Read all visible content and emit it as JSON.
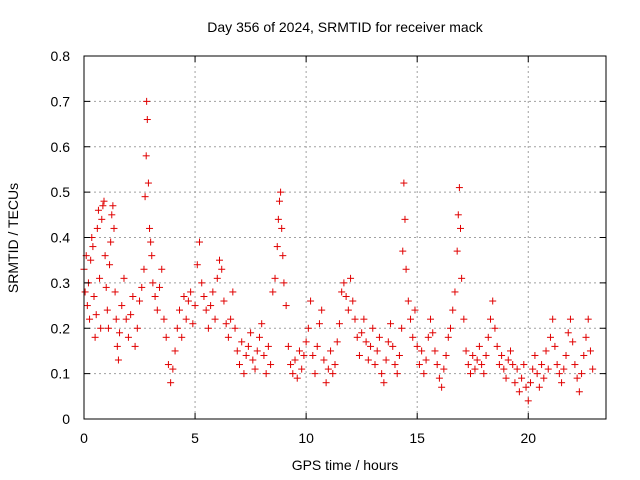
{
  "chart_data": {
    "type": "scatter",
    "title": "Day 356 of 2024, SRMTID for receiver mack",
    "xlabel": "GPS time / hours",
    "ylabel": "SRMTID / TECUs",
    "xlim": [
      0,
      23.5
    ],
    "ylim": [
      0,
      0.8
    ],
    "xticks": [
      0,
      5,
      10,
      15,
      20
    ],
    "xtick_labels": [
      "0",
      "5",
      "10",
      "15",
      "20"
    ],
    "yticks": [
      0,
      0.1,
      0.2,
      0.3,
      0.4,
      0.5,
      0.6,
      0.7,
      0.8
    ],
    "ytick_labels": [
      "0",
      "0.1",
      "0.2",
      "0.3",
      "0.4",
      "0.5",
      "0.6",
      "0.7",
      "0.8"
    ],
    "grid": true,
    "marker": "+",
    "color": "#e00000",
    "series": [
      {
        "name": "SRMTID",
        "points": [
          [
            0.0,
            0.33
          ],
          [
            0.05,
            0.28
          ],
          [
            0.1,
            0.36
          ],
          [
            0.15,
            0.25
          ],
          [
            0.2,
            0.3
          ],
          [
            0.25,
            0.22
          ],
          [
            0.3,
            0.35
          ],
          [
            0.35,
            0.4
          ],
          [
            0.4,
            0.38
          ],
          [
            0.45,
            0.27
          ],
          [
            0.5,
            0.18
          ],
          [
            0.55,
            0.23
          ],
          [
            0.6,
            0.42
          ],
          [
            0.65,
            0.46
          ],
          [
            0.7,
            0.31
          ],
          [
            0.75,
            0.2
          ],
          [
            0.8,
            0.44
          ],
          [
            0.85,
            0.47
          ],
          [
            0.9,
            0.48
          ],
          [
            0.95,
            0.36
          ],
          [
            1.0,
            0.29
          ],
          [
            1.05,
            0.24
          ],
          [
            1.1,
            0.2
          ],
          [
            1.15,
            0.34
          ],
          [
            1.2,
            0.39
          ],
          [
            1.25,
            0.45
          ],
          [
            1.3,
            0.47
          ],
          [
            1.35,
            0.42
          ],
          [
            1.4,
            0.28
          ],
          [
            1.45,
            0.22
          ],
          [
            1.5,
            0.16
          ],
          [
            1.55,
            0.13
          ],
          [
            1.6,
            0.19
          ],
          [
            1.7,
            0.25
          ],
          [
            1.8,
            0.31
          ],
          [
            1.9,
            0.22
          ],
          [
            2.0,
            0.18
          ],
          [
            2.1,
            0.23
          ],
          [
            2.2,
            0.27
          ],
          [
            2.3,
            0.16
          ],
          [
            2.4,
            0.2
          ],
          [
            2.5,
            0.26
          ],
          [
            2.6,
            0.29
          ],
          [
            2.7,
            0.33
          ],
          [
            2.75,
            0.49
          ],
          [
            2.8,
            0.58
          ],
          [
            2.82,
            0.7
          ],
          [
            2.85,
            0.66
          ],
          [
            2.9,
            0.52
          ],
          [
            2.95,
            0.42
          ],
          [
            3.0,
            0.39
          ],
          [
            3.05,
            0.36
          ],
          [
            3.1,
            0.3
          ],
          [
            3.2,
            0.27
          ],
          [
            3.3,
            0.24
          ],
          [
            3.4,
            0.29
          ],
          [
            3.5,
            0.33
          ],
          [
            3.6,
            0.22
          ],
          [
            3.7,
            0.18
          ],
          [
            3.8,
            0.12
          ],
          [
            3.9,
            0.08
          ],
          [
            4.0,
            0.11
          ],
          [
            4.1,
            0.15
          ],
          [
            4.2,
            0.2
          ],
          [
            4.3,
            0.24
          ],
          [
            4.4,
            0.18
          ],
          [
            4.5,
            0.27
          ],
          [
            4.6,
            0.22
          ],
          [
            4.7,
            0.26
          ],
          [
            4.8,
            0.28
          ],
          [
            4.9,
            0.21
          ],
          [
            5.0,
            0.25
          ],
          [
            5.1,
            0.34
          ],
          [
            5.2,
            0.39
          ],
          [
            5.3,
            0.3
          ],
          [
            5.4,
            0.27
          ],
          [
            5.5,
            0.24
          ],
          [
            5.6,
            0.2
          ],
          [
            5.7,
            0.25
          ],
          [
            5.8,
            0.28
          ],
          [
            5.9,
            0.22
          ],
          [
            6.0,
            0.31
          ],
          [
            6.1,
            0.35
          ],
          [
            6.2,
            0.33
          ],
          [
            6.3,
            0.26
          ],
          [
            6.4,
            0.21
          ],
          [
            6.5,
            0.18
          ],
          [
            6.6,
            0.22
          ],
          [
            6.7,
            0.28
          ],
          [
            6.8,
            0.2
          ],
          [
            6.9,
            0.15
          ],
          [
            7.0,
            0.12
          ],
          [
            7.1,
            0.17
          ],
          [
            7.2,
            0.1
          ],
          [
            7.3,
            0.14
          ],
          [
            7.4,
            0.16
          ],
          [
            7.5,
            0.19
          ],
          [
            7.6,
            0.13
          ],
          [
            7.7,
            0.11
          ],
          [
            7.8,
            0.15
          ],
          [
            7.9,
            0.18
          ],
          [
            8.0,
            0.21
          ],
          [
            8.1,
            0.14
          ],
          [
            8.2,
            0.1
          ],
          [
            8.3,
            0.16
          ],
          [
            8.4,
            0.12
          ],
          [
            8.5,
            0.28
          ],
          [
            8.6,
            0.31
          ],
          [
            8.7,
            0.38
          ],
          [
            8.75,
            0.44
          ],
          [
            8.8,
            0.48
          ],
          [
            8.85,
            0.5
          ],
          [
            8.9,
            0.42
          ],
          [
            8.95,
            0.36
          ],
          [
            9.0,
            0.3
          ],
          [
            9.1,
            0.25
          ],
          [
            9.2,
            0.16
          ],
          [
            9.3,
            0.12
          ],
          [
            9.4,
            0.1
          ],
          [
            9.5,
            0.13
          ],
          [
            9.6,
            0.09
          ],
          [
            9.7,
            0.15
          ],
          [
            9.8,
            0.11
          ],
          [
            9.9,
            0.14
          ],
          [
            10.0,
            0.17
          ],
          [
            10.1,
            0.2
          ],
          [
            10.2,
            0.26
          ],
          [
            10.3,
            0.14
          ],
          [
            10.4,
            0.1
          ],
          [
            10.5,
            0.16
          ],
          [
            10.6,
            0.21
          ],
          [
            10.7,
            0.24
          ],
          [
            10.8,
            0.13
          ],
          [
            10.9,
            0.08
          ],
          [
            11.0,
            0.11
          ],
          [
            11.1,
            0.15
          ],
          [
            11.2,
            0.1
          ],
          [
            11.3,
            0.12
          ],
          [
            11.4,
            0.17
          ],
          [
            11.5,
            0.21
          ],
          [
            11.6,
            0.28
          ],
          [
            11.7,
            0.3
          ],
          [
            11.8,
            0.27
          ],
          [
            11.9,
            0.24
          ],
          [
            12.0,
            0.31
          ],
          [
            12.1,
            0.26
          ],
          [
            12.2,
            0.22
          ],
          [
            12.3,
            0.18
          ],
          [
            12.4,
            0.14
          ],
          [
            12.5,
            0.19
          ],
          [
            12.6,
            0.22
          ],
          [
            12.7,
            0.17
          ],
          [
            12.8,
            0.13
          ],
          [
            12.9,
            0.16
          ],
          [
            13.0,
            0.2
          ],
          [
            13.1,
            0.12
          ],
          [
            13.2,
            0.15
          ],
          [
            13.3,
            0.18
          ],
          [
            13.4,
            0.1
          ],
          [
            13.5,
            0.08
          ],
          [
            13.6,
            0.13
          ],
          [
            13.7,
            0.17
          ],
          [
            13.8,
            0.21
          ],
          [
            13.9,
            0.16
          ],
          [
            14.0,
            0.12
          ],
          [
            14.1,
            0.1
          ],
          [
            14.2,
            0.14
          ],
          [
            14.3,
            0.2
          ],
          [
            14.35,
            0.37
          ],
          [
            14.4,
            0.52
          ],
          [
            14.45,
            0.44
          ],
          [
            14.5,
            0.33
          ],
          [
            14.6,
            0.26
          ],
          [
            14.7,
            0.22
          ],
          [
            14.8,
            0.18
          ],
          [
            14.9,
            0.24
          ],
          [
            15.0,
            0.16
          ],
          [
            15.1,
            0.12
          ],
          [
            15.2,
            0.15
          ],
          [
            15.3,
            0.1
          ],
          [
            15.4,
            0.13
          ],
          [
            15.5,
            0.18
          ],
          [
            15.6,
            0.22
          ],
          [
            15.7,
            0.19
          ],
          [
            15.8,
            0.15
          ],
          [
            15.9,
            0.12
          ],
          [
            16.0,
            0.09
          ],
          [
            16.1,
            0.07
          ],
          [
            16.2,
            0.11
          ],
          [
            16.3,
            0.14
          ],
          [
            16.4,
            0.18
          ],
          [
            16.5,
            0.2
          ],
          [
            16.6,
            0.24
          ],
          [
            16.7,
            0.28
          ],
          [
            16.8,
            0.37
          ],
          [
            16.85,
            0.45
          ],
          [
            16.9,
            0.51
          ],
          [
            16.95,
            0.42
          ],
          [
            17.0,
            0.31
          ],
          [
            17.1,
            0.22
          ],
          [
            17.2,
            0.15
          ],
          [
            17.3,
            0.12
          ],
          [
            17.4,
            0.1
          ],
          [
            17.5,
            0.14
          ],
          [
            17.6,
            0.11
          ],
          [
            17.7,
            0.13
          ],
          [
            17.8,
            0.16
          ],
          [
            17.9,
            0.12
          ],
          [
            18.0,
            0.1
          ],
          [
            18.1,
            0.14
          ],
          [
            18.2,
            0.18
          ],
          [
            18.3,
            0.22
          ],
          [
            18.4,
            0.26
          ],
          [
            18.5,
            0.2
          ],
          [
            18.6,
            0.16
          ],
          [
            18.7,
            0.12
          ],
          [
            18.8,
            0.14
          ],
          [
            18.9,
            0.11
          ],
          [
            19.0,
            0.09
          ],
          [
            19.1,
            0.13
          ],
          [
            19.2,
            0.15
          ],
          [
            19.3,
            0.12
          ],
          [
            19.4,
            0.08
          ],
          [
            19.5,
            0.11
          ],
          [
            19.6,
            0.06
          ],
          [
            19.7,
            0.09
          ],
          [
            19.8,
            0.12
          ],
          [
            19.9,
            0.07
          ],
          [
            20.0,
            0.04
          ],
          [
            20.1,
            0.08
          ],
          [
            20.2,
            0.11
          ],
          [
            20.3,
            0.14
          ],
          [
            20.4,
            0.1
          ],
          [
            20.5,
            0.07
          ],
          [
            20.6,
            0.12
          ],
          [
            20.7,
            0.09
          ],
          [
            20.8,
            0.15
          ],
          [
            20.9,
            0.11
          ],
          [
            21.0,
            0.18
          ],
          [
            21.1,
            0.22
          ],
          [
            21.2,
            0.16
          ],
          [
            21.3,
            0.12
          ],
          [
            21.4,
            0.1
          ],
          [
            21.5,
            0.08
          ],
          [
            21.6,
            0.11
          ],
          [
            21.7,
            0.14
          ],
          [
            21.8,
            0.19
          ],
          [
            21.9,
            0.22
          ],
          [
            22.0,
            0.17
          ],
          [
            22.1,
            0.12
          ],
          [
            22.2,
            0.09
          ],
          [
            22.3,
            0.06
          ],
          [
            22.4,
            0.1
          ],
          [
            22.5,
            0.14
          ],
          [
            22.6,
            0.18
          ],
          [
            22.7,
            0.22
          ],
          [
            22.8,
            0.15
          ],
          [
            22.9,
            0.11
          ]
        ]
      }
    ]
  }
}
